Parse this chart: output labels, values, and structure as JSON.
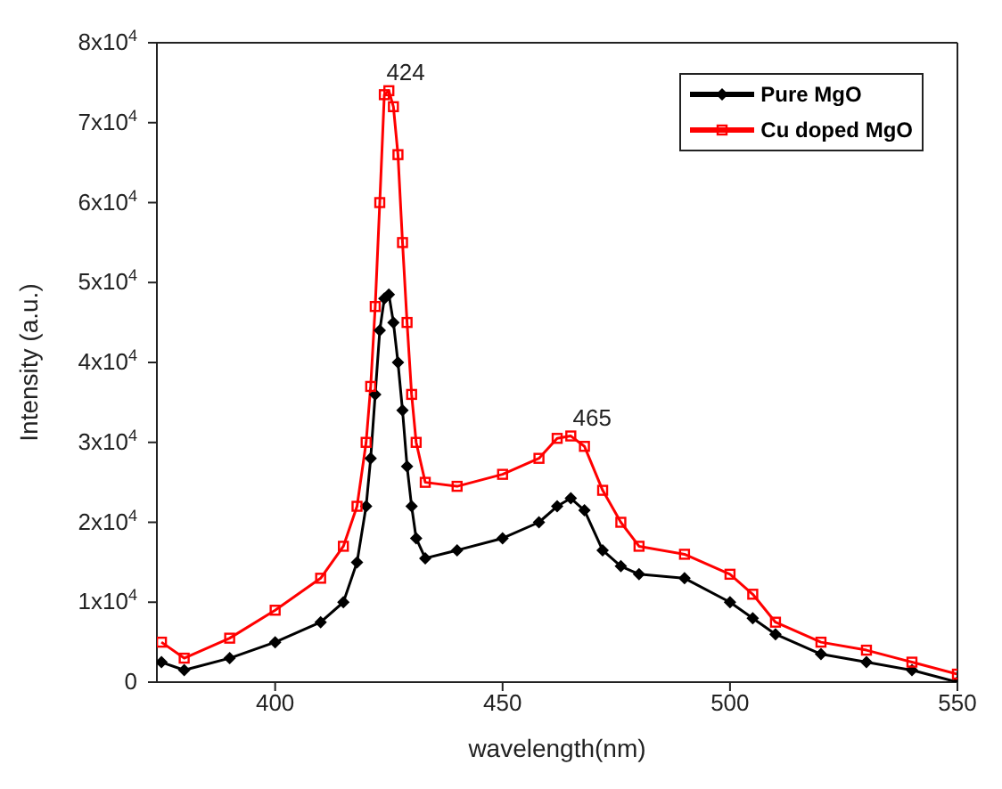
{
  "chart_data": {
    "type": "line",
    "xlabel": "wavelength(nm)",
    "ylabel": "Intensity (a.u.)",
    "xlim": [
      374,
      550
    ],
    "xticks": [
      400,
      450,
      500,
      550
    ],
    "ylim": [
      0,
      80000
    ],
    "yticks": [
      0,
      {
        "value": 10000,
        "label": "1x10$^{4}$"
      },
      {
        "value": 20000,
        "label": "2x10$^{4}$"
      },
      {
        "value": 30000,
        "label": "3x10$^{4}$"
      },
      {
        "value": 40000,
        "label": "4x10$^{4}$"
      },
      {
        "value": 50000,
        "label": "5x10$^{4}$"
      },
      {
        "value": 60000,
        "label": "6x10$^{4}$"
      },
      {
        "value": 70000,
        "label": "7x10$^{4}$"
      },
      {
        "value": 80000,
        "label": "8x10$^{4}$"
      }
    ],
    "grid": false,
    "legend": "top right",
    "line_style": "solid",
    "x": [
      375,
      380,
      390,
      400,
      410,
      415,
      418,
      420,
      421,
      422,
      423,
      424,
      425,
      426,
      427,
      428,
      429,
      430,
      431,
      433,
      440,
      450,
      458,
      462,
      465,
      468,
      472,
      476,
      480,
      490,
      500,
      505,
      510,
      520,
      530,
      540,
      550
    ],
    "series": [
      {
        "name": "Pure MgO",
        "color": "#000000",
        "marker": "diamond",
        "values": [
          2500,
          1500,
          3000,
          5000,
          7500,
          10000,
          15000,
          22000,
          28000,
          36000,
          44000,
          48000,
          48500,
          45000,
          40000,
          34000,
          27000,
          22000,
          18000,
          15500,
          16500,
          18000,
          20000,
          22000,
          23000,
          21500,
          16500,
          14500,
          13500,
          13000,
          10000,
          8000,
          6000,
          3500,
          2500,
          1500,
          0
        ]
      },
      {
        "name": "Cu doped MgO",
        "color": "#ff0000",
        "marker": "square",
        "values": [
          5000,
          3000,
          5500,
          9000,
          13000,
          17000,
          22000,
          30000,
          37000,
          47000,
          60000,
          73500,
          74000,
          72000,
          66000,
          55000,
          45000,
          36000,
          30000,
          25000,
          24500,
          26000,
          28000,
          30500,
          30800,
          29500,
          24000,
          20000,
          17000,
          16000,
          13500,
          11000,
          7500,
          5000,
          4000,
          2500,
          1000
        ]
      }
    ],
    "annotations": [
      {
        "text": "424",
        "x": 424,
        "y": 74000
      },
      {
        "text": "465",
        "x": 465,
        "y": 30800
      }
    ]
  }
}
